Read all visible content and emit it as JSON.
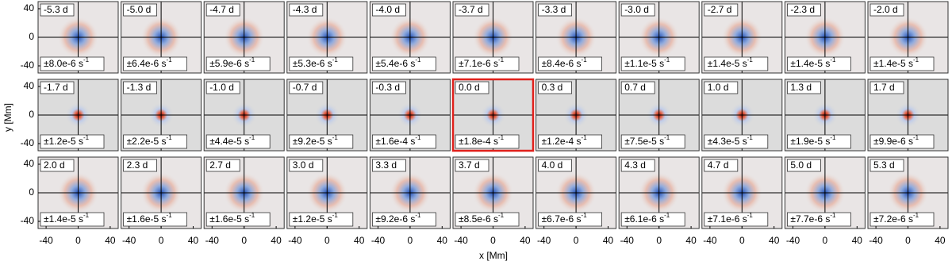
{
  "chart_data": {
    "type": "image-grid",
    "xlabel": "x [Mm]",
    "ylabel": "y [Mm]",
    "xlim": [
      -50,
      50
    ],
    "ylim": [
      -50,
      50
    ],
    "xticks": [
      -40,
      0,
      40
    ],
    "yticks": [
      -40,
      0,
      40
    ],
    "highlight_panel": 16,
    "highlight_color": "#e0201b",
    "panels": [
      {
        "time": "-5.3 d",
        "scale": "±8.0e-6 s",
        "exp": "-1"
      },
      {
        "time": "-5.0 d",
        "scale": "±6.4e-6 s",
        "exp": "-1"
      },
      {
        "time": "-4.7 d",
        "scale": "±5.9e-6 s",
        "exp": "-1"
      },
      {
        "time": "-4.3 d",
        "scale": "±5.3e-6 s",
        "exp": "-1"
      },
      {
        "time": "-4.0 d",
        "scale": "±5.4e-6 s",
        "exp": "-1"
      },
      {
        "time": "-3.7 d",
        "scale": "±7.1e-6 s",
        "exp": "-1"
      },
      {
        "time": "-3.3 d",
        "scale": "±8.4e-6 s",
        "exp": "-1"
      },
      {
        "time": "-3.0 d",
        "scale": "±1.1e-5 s",
        "exp": "-1"
      },
      {
        "time": "-2.7 d",
        "scale": "±1.4e-5 s",
        "exp": "-1"
      },
      {
        "time": "-2.3 d",
        "scale": "±1.4e-5 s",
        "exp": "-1"
      },
      {
        "time": "-2.0 d",
        "scale": "±1.4e-5 s",
        "exp": "-1"
      },
      {
        "time": "-1.7 d",
        "scale": "±1.2e-5 s",
        "exp": "-1"
      },
      {
        "time": "-1.3 d",
        "scale": "±2.2e-5 s",
        "exp": "-1"
      },
      {
        "time": "-1.0 d",
        "scale": "±4.4e-5 s",
        "exp": "-1"
      },
      {
        "time": "-0.7 d",
        "scale": "±9.2e-5 s",
        "exp": "-1"
      },
      {
        "time": "-0.3 d",
        "scale": "±1.6e-4 s",
        "exp": "-1"
      },
      {
        "time": "0.0 d",
        "scale": "±1.8e-4 s",
        "exp": "-1"
      },
      {
        "time": "0.3 d",
        "scale": "±1.2e-4 s",
        "exp": "-1"
      },
      {
        "time": "0.7 d",
        "scale": "±7.5e-5 s",
        "exp": "-1"
      },
      {
        "time": "1.0 d",
        "scale": "±4.3e-5 s",
        "exp": "-1"
      },
      {
        "time": "1.3 d",
        "scale": "±1.9e-5 s",
        "exp": "-1"
      },
      {
        "time": "1.7 d",
        "scale": "±9.9e-6 s",
        "exp": "-1"
      },
      {
        "time": "2.0 d",
        "scale": "±1.4e-5 s",
        "exp": "-1"
      },
      {
        "time": "2.3 d",
        "scale": "±1.6e-5 s",
        "exp": "-1"
      },
      {
        "time": "2.7 d",
        "scale": "±1.6e-5 s",
        "exp": "-1"
      },
      {
        "time": "3.0 d",
        "scale": "±1.2e-5 s",
        "exp": "-1"
      },
      {
        "time": "3.3 d",
        "scale": "±9.2e-6 s",
        "exp": "-1"
      },
      {
        "time": "3.7 d",
        "scale": "±8.5e-6 s",
        "exp": "-1"
      },
      {
        "time": "4.0 d",
        "scale": "±6.7e-6 s",
        "exp": "-1"
      },
      {
        "time": "4.3 d",
        "scale": "±6.1e-6 s",
        "exp": "-1"
      },
      {
        "time": "4.7 d",
        "scale": "±7.1e-6 s",
        "exp": "-1"
      },
      {
        "time": "5.0 d",
        "scale": "±7.7e-6 s",
        "exp": "-1"
      },
      {
        "time": "5.3 d",
        "scale": "±7.2e-6 s",
        "exp": "-1"
      }
    ]
  }
}
